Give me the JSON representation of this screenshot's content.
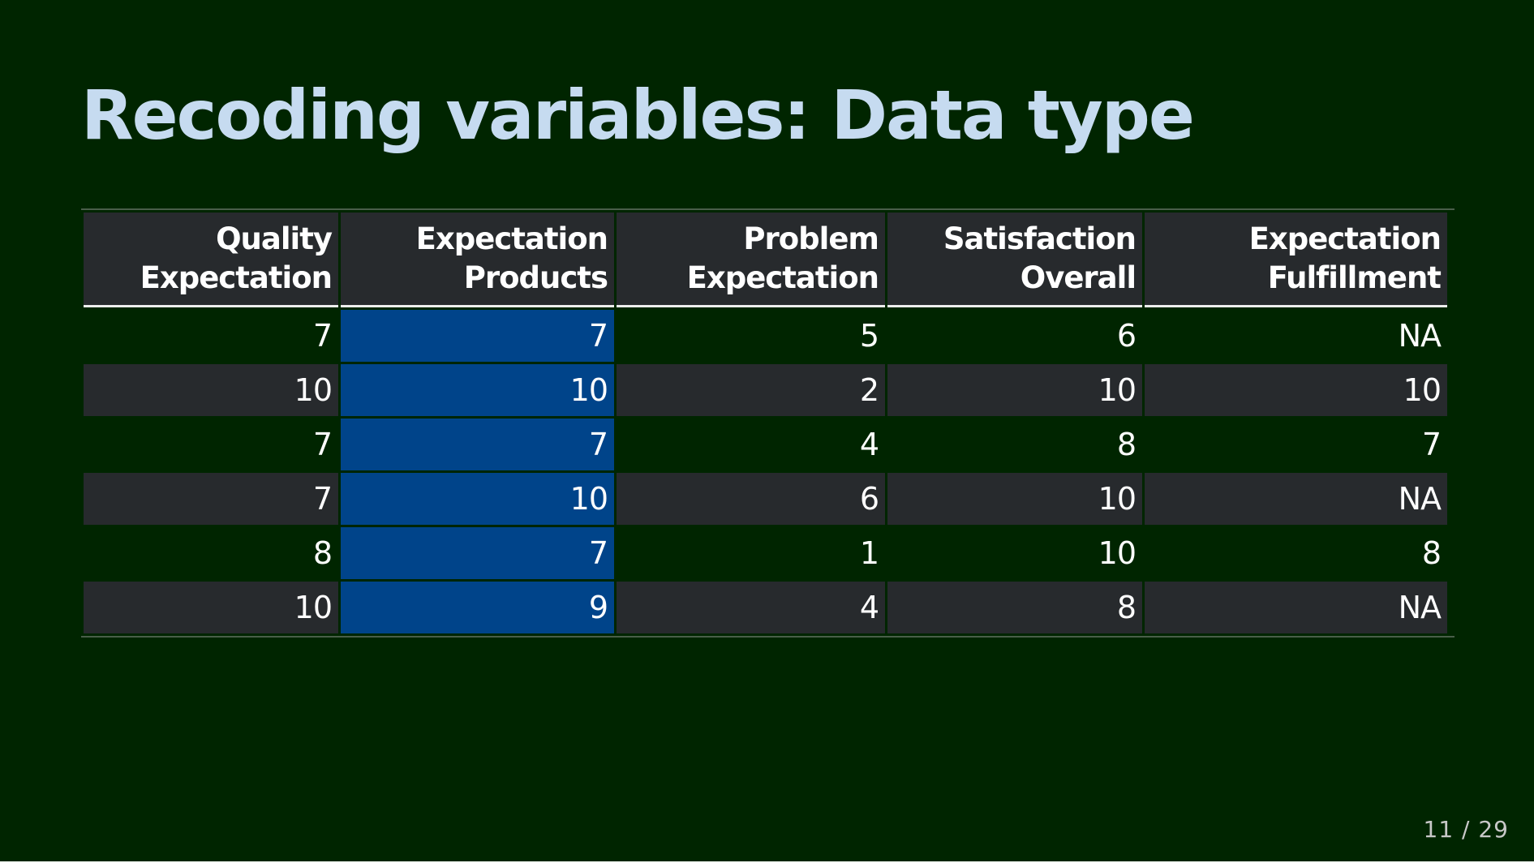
{
  "slide": {
    "title": "Recoding variables: Data type",
    "page_number": "11 / 29"
  },
  "colors": {
    "background": "#002500",
    "title": "#C6DBF0",
    "stripe": "#272A2D",
    "highlight": "#00448A"
  },
  "table": {
    "highlight_column_index": 1,
    "headers": [
      {
        "line1": "Quality",
        "line2": "Expectation"
      },
      {
        "line1": "Expectation",
        "line2": "Products"
      },
      {
        "line1": "Problem",
        "line2": "Expectation"
      },
      {
        "line1": "Satisfaction",
        "line2": "Overall"
      },
      {
        "line1": "Expectation",
        "line2": "Fulfillment"
      }
    ],
    "rows": [
      [
        "7",
        "7",
        "5",
        "6",
        "NA"
      ],
      [
        "10",
        "10",
        "2",
        "10",
        "10"
      ],
      [
        "7",
        "7",
        "4",
        "8",
        "7"
      ],
      [
        "7",
        "10",
        "6",
        "10",
        "NA"
      ],
      [
        "8",
        "7",
        "1",
        "10",
        "8"
      ],
      [
        "10",
        "9",
        "4",
        "8",
        "NA"
      ]
    ]
  }
}
